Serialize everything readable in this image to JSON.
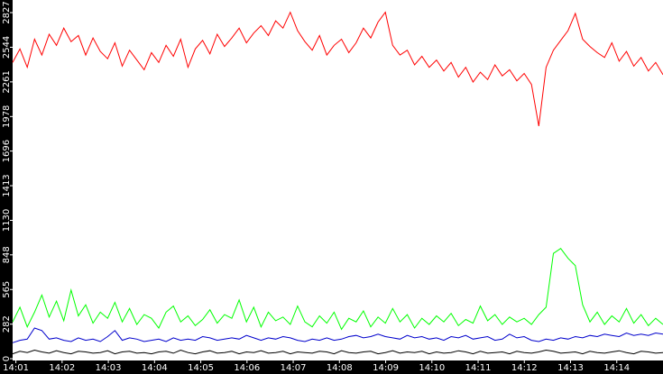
{
  "chart_data": {
    "type": "line",
    "xlim": [
      0.93,
      15.0
    ],
    "xticks": [
      {
        "value": 1,
        "label": "14:01"
      },
      {
        "value": 2,
        "label": "14:02"
      },
      {
        "value": 3,
        "label": "14:03"
      },
      {
        "value": 4,
        "label": "14:04"
      },
      {
        "value": 5,
        "label": "14:05"
      },
      {
        "value": 6,
        "label": "14:06"
      },
      {
        "value": 7,
        "label": "14:07"
      },
      {
        "value": 8,
        "label": "14:08"
      },
      {
        "value": 9,
        "label": "14:09"
      },
      {
        "value": 10,
        "label": "14:10"
      },
      {
        "value": 11,
        "label": "14:11"
      },
      {
        "value": 12,
        "label": "14:12"
      },
      {
        "value": 13,
        "label": "14:13"
      },
      {
        "value": 14,
        "label": "14:14"
      }
    ],
    "ylim": [
      0,
      2930
    ],
    "yticks": [
      0,
      282,
      565,
      848,
      1130,
      1413,
      1696,
      1978,
      2261,
      2544,
      2827
    ],
    "series": [
      {
        "color": "#ff0000",
        "values": [
          2420,
          2530,
          2380,
          2610,
          2480,
          2650,
          2560,
          2700,
          2590,
          2640,
          2480,
          2620,
          2510,
          2450,
          2580,
          2390,
          2520,
          2440,
          2360,
          2500,
          2420,
          2560,
          2470,
          2610,
          2380,
          2530,
          2600,
          2490,
          2650,
          2550,
          2620,
          2700,
          2580,
          2660,
          2720,
          2640,
          2760,
          2700,
          2830,
          2680,
          2590,
          2520,
          2640,
          2480,
          2560,
          2610,
          2500,
          2580,
          2700,
          2620,
          2750,
          2830,
          2560,
          2480,
          2520,
          2400,
          2470,
          2380,
          2440,
          2350,
          2420,
          2300,
          2380,
          2260,
          2340,
          2280,
          2400,
          2310,
          2360,
          2270,
          2330,
          2240,
          1900,
          2380,
          2520,
          2600,
          2680,
          2820,
          2610,
          2550,
          2500,
          2460,
          2580,
          2430,
          2510,
          2390,
          2460,
          2350,
          2420,
          2320
        ]
      },
      {
        "color": "#00ff00",
        "values": [
          300,
          420,
          260,
          380,
          520,
          340,
          470,
          310,
          560,
          350,
          440,
          290,
          380,
          330,
          460,
          300,
          410,
          280,
          360,
          330,
          250,
          380,
          430,
          300,
          350,
          270,
          320,
          400,
          290,
          360,
          330,
          480,
          300,
          420,
          260,
          380,
          310,
          340,
          280,
          430,
          300,
          260,
          350,
          290,
          380,
          240,
          330,
          300,
          390,
          260,
          340,
          290,
          410,
          300,
          360,
          250,
          330,
          280,
          350,
          300,
          370,
          270,
          320,
          290,
          430,
          310,
          360,
          280,
          340,
          300,
          330,
          280,
          360,
          420,
          860,
          900,
          820,
          760,
          440,
          300,
          380,
          280,
          350,
          300,
          410,
          290,
          360,
          270,
          330,
          280
        ]
      },
      {
        "color": "#0000cc",
        "values": [
          130,
          150,
          160,
          250,
          230,
          160,
          170,
          150,
          140,
          170,
          150,
          160,
          140,
          180,
          230,
          150,
          170,
          160,
          140,
          150,
          160,
          140,
          170,
          150,
          160,
          150,
          180,
          170,
          150,
          160,
          170,
          160,
          190,
          170,
          150,
          170,
          160,
          180,
          170,
          150,
          140,
          160,
          150,
          170,
          150,
          160,
          180,
          190,
          170,
          180,
          200,
          180,
          170,
          160,
          190,
          170,
          180,
          160,
          170,
          150,
          180,
          170,
          190,
          160,
          170,
          180,
          150,
          160,
          200,
          170,
          180,
          150,
          140,
          160,
          150,
          170,
          160,
          180,
          170,
          190,
          180,
          200,
          190,
          180,
          210,
          190,
          200,
          190,
          210,
          200
        ]
      },
      {
        "color": "#000000",
        "values": [
          40,
          60,
          50,
          70,
          55,
          45,
          65,
          50,
          40,
          60,
          55,
          45,
          50,
          65,
          40,
          55,
          60,
          45,
          50,
          40,
          55,
          60,
          45,
          70,
          50,
          40,
          55,
          65,
          45,
          50,
          60,
          40,
          55,
          50,
          65,
          45,
          50,
          60,
          40,
          55,
          50,
          45,
          60,
          55,
          40,
          65,
          50,
          45,
          55,
          60,
          40,
          50,
          65,
          45,
          55,
          50,
          60,
          40,
          55,
          45,
          50,
          65,
          55,
          40,
          60,
          45,
          50,
          55,
          40,
          60,
          50,
          45,
          55,
          70,
          60,
          45,
          50,
          55,
          40,
          60,
          50,
          45,
          55,
          65,
          50,
          40,
          60,
          55,
          45,
          50
        ]
      }
    ]
  }
}
